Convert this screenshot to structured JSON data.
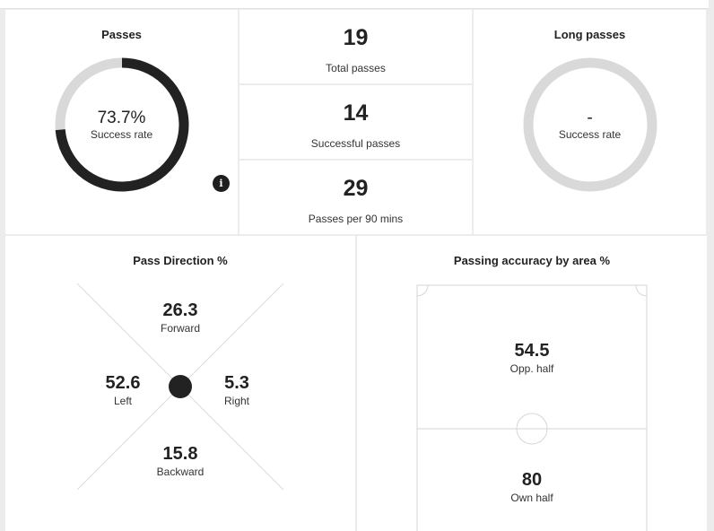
{
  "passes": {
    "title": "Passes",
    "success_value": "73.7%",
    "success_label": "Success rate",
    "success_fraction": 0.737,
    "info_glyph": "i",
    "icon": "info-icon"
  },
  "stats": [
    {
      "value": "19",
      "label": "Total passes"
    },
    {
      "value": "14",
      "label": "Successful passes"
    },
    {
      "value": "29",
      "label": "Passes per 90 mins"
    }
  ],
  "long_passes": {
    "title": "Long passes",
    "success_value": "-",
    "success_label": "Success rate"
  },
  "direction": {
    "title": "Pass Direction %",
    "forward": {
      "value": "26.3",
      "label": "Forward"
    },
    "left": {
      "value": "52.6",
      "label": "Left"
    },
    "right": {
      "value": "5.3",
      "label": "Right"
    },
    "backward": {
      "value": "15.8",
      "label": "Backward"
    }
  },
  "area": {
    "title": "Passing accuracy by area %",
    "opp_half": {
      "value": "54.5",
      "label": "Opp. half"
    },
    "own_half": {
      "value": "80",
      "label": "Own half"
    }
  },
  "colors": {
    "dark": "#222222",
    "ring_track": "#d9d9d9",
    "line": "#dcdcdc",
    "background": "#ececec"
  }
}
